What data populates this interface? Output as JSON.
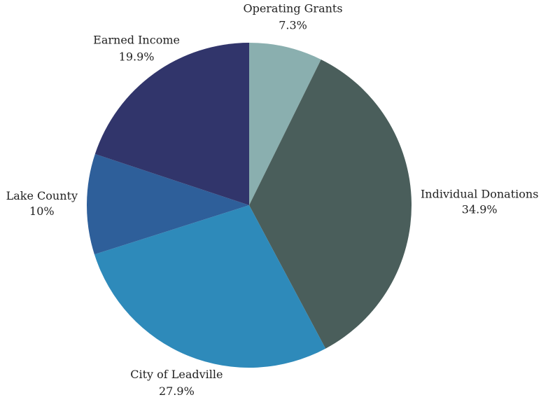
{
  "chart_data": {
    "type": "pie",
    "categories": [
      "Operating Grants",
      "Individual Donations",
      "City of Leadville",
      "Lake County",
      "Earned Income"
    ],
    "values": [
      7.3,
      34.9,
      27.9,
      10,
      19.9
    ],
    "value_labels": [
      "7.3%",
      "34.9%",
      "27.9%",
      "10%",
      "19.9%"
    ],
    "colors": [
      "#8aafaf",
      "#4a5e5b",
      "#2e8aba",
      "#2e5f9a",
      "#31356b"
    ]
  }
}
